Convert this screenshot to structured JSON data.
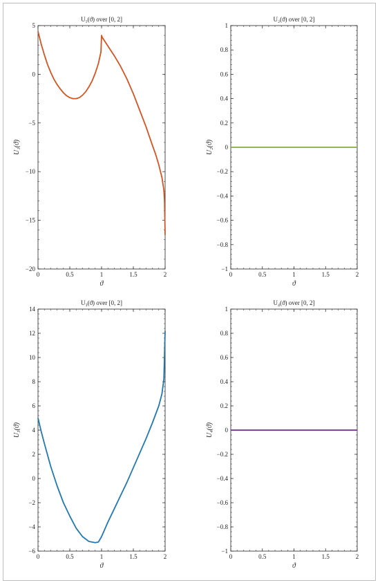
{
  "chart_data": [
    {
      "type": "line",
      "title": "U₁(ϑ) over [0, 2]",
      "xlabel": "ϑ",
      "ylabel": "U₁(ϑ)",
      "xlim": [
        0,
        2
      ],
      "ylim": [
        -20,
        5
      ],
      "xticks": [
        0,
        0.5,
        1,
        1.5,
        2
      ],
      "xticklabels": [
        "0",
        "0.5",
        "1",
        "1.5",
        "2"
      ],
      "yticks": [
        -20,
        -15,
        -10,
        -5,
        0,
        5
      ],
      "yticklabels": [
        "−20",
        "−15",
        "−10",
        "−5",
        "0",
        "5"
      ],
      "color": "#d4531f",
      "series": [
        {
          "x": [
            0,
            0.05,
            0.1,
            0.15,
            0.2,
            0.25,
            0.3,
            0.35,
            0.4,
            0.45,
            0.5,
            0.55,
            0.6,
            0.65,
            0.7,
            0.75,
            0.8,
            0.85,
            0.9,
            0.95,
            0.99,
            1.0,
            1.01,
            1.1,
            1.2,
            1.3,
            1.4,
            1.5,
            1.6,
            1.7,
            1.8,
            1.85,
            1.9,
            1.95,
            1.98,
            1.99,
            2.0
          ],
          "y": [
            4.4,
            3.1,
            2.0,
            1.0,
            0.2,
            -0.5,
            -1.05,
            -1.5,
            -1.9,
            -2.2,
            -2.4,
            -2.5,
            -2.5,
            -2.4,
            -2.15,
            -1.8,
            -1.3,
            -0.7,
            0.1,
            1.1,
            2.3,
            4.0,
            3.8,
            2.9,
            1.9,
            0.8,
            -0.5,
            -2.0,
            -3.7,
            -5.4,
            -7.3,
            -8.2,
            -9.3,
            -10.6,
            -11.9,
            -13.0,
            -16.5
          ]
        }
      ]
    },
    {
      "type": "line",
      "title": "U₂(ϑ) over [0, 2]",
      "xlabel": "ϑ",
      "ylabel": "U₂(ϑ)",
      "xlim": [
        0,
        2
      ],
      "ylim": [
        -1,
        1
      ],
      "xticks": [
        0,
        0.5,
        1,
        1.5,
        2
      ],
      "xticklabels": [
        "0",
        "0.5",
        "1",
        "1.5",
        "2"
      ],
      "yticks": [
        -1,
        -0.8,
        -0.6,
        -0.4,
        -0.2,
        0,
        0.2,
        0.4,
        0.6,
        0.8,
        1
      ],
      "yticklabels": [
        "−1",
        "−0.8",
        "−0.6",
        "−0.4",
        "−0.2",
        "0",
        "0.2",
        "0.4",
        "0.6",
        "0.8",
        "1"
      ],
      "color": "#7fae3a",
      "series": [
        {
          "x": [
            0,
            2
          ],
          "y": [
            0,
            0
          ]
        }
      ]
    },
    {
      "type": "line",
      "title": "U₃(ϑ) over [0, 2]",
      "xlabel": "ϑ",
      "ylabel": "U₃(ϑ)",
      "xlim": [
        0,
        2
      ],
      "ylim": [
        -6,
        14
      ],
      "xticks": [
        0,
        0.5,
        1,
        1.5,
        2
      ],
      "xticklabels": [
        "0",
        "0.5",
        "1",
        "1.5",
        "2"
      ],
      "yticks": [
        -6,
        -4,
        -2,
        0,
        2,
        4,
        6,
        8,
        10,
        12,
        14
      ],
      "yticklabels": [
        "−6",
        "−4",
        "−2",
        "0",
        "2",
        "4",
        "6",
        "8",
        "10",
        "12",
        "14"
      ],
      "color": "#1f77b4",
      "series": [
        {
          "x": [
            0,
            0.05,
            0.1,
            0.2,
            0.3,
            0.4,
            0.5,
            0.6,
            0.7,
            0.8,
            0.9,
            0.95,
            1.0,
            1.05,
            1.1,
            1.2,
            1.3,
            1.4,
            1.5,
            1.6,
            1.7,
            1.8,
            1.9,
            1.95,
            1.98,
            2.0
          ],
          "y": [
            5.0,
            3.9,
            2.9,
            1.0,
            -0.6,
            -2.0,
            -3.1,
            -4.1,
            -4.8,
            -5.2,
            -5.3,
            -5.25,
            -4.8,
            -4.2,
            -3.6,
            -2.5,
            -1.4,
            -0.3,
            0.9,
            2.1,
            3.3,
            4.6,
            6.0,
            7.0,
            8.2,
            12.2
          ]
        }
      ]
    },
    {
      "type": "line",
      "title": "U₄(ϑ) over [0, 2]",
      "xlabel": "ϑ",
      "ylabel": "U₄(ϑ)",
      "xlim": [
        0,
        2
      ],
      "ylim": [
        -1,
        1
      ],
      "xticks": [
        0,
        0.5,
        1,
        1.5,
        2
      ],
      "xticklabels": [
        "0",
        "0.5",
        "1",
        "1.5",
        "2"
      ],
      "yticks": [
        -1,
        -0.8,
        -0.6,
        -0.4,
        -0.2,
        0,
        0.2,
        0.4,
        0.6,
        0.8,
        1
      ],
      "yticklabels": [
        "−1",
        "−0.8",
        "−0.6",
        "−0.4",
        "−0.2",
        "0",
        "0.2",
        "0.4",
        "0.6",
        "0.8",
        "1"
      ],
      "color": "#6a2c8e",
      "series": [
        {
          "x": [
            0,
            2
          ],
          "y": [
            0,
            0
          ]
        }
      ]
    }
  ]
}
